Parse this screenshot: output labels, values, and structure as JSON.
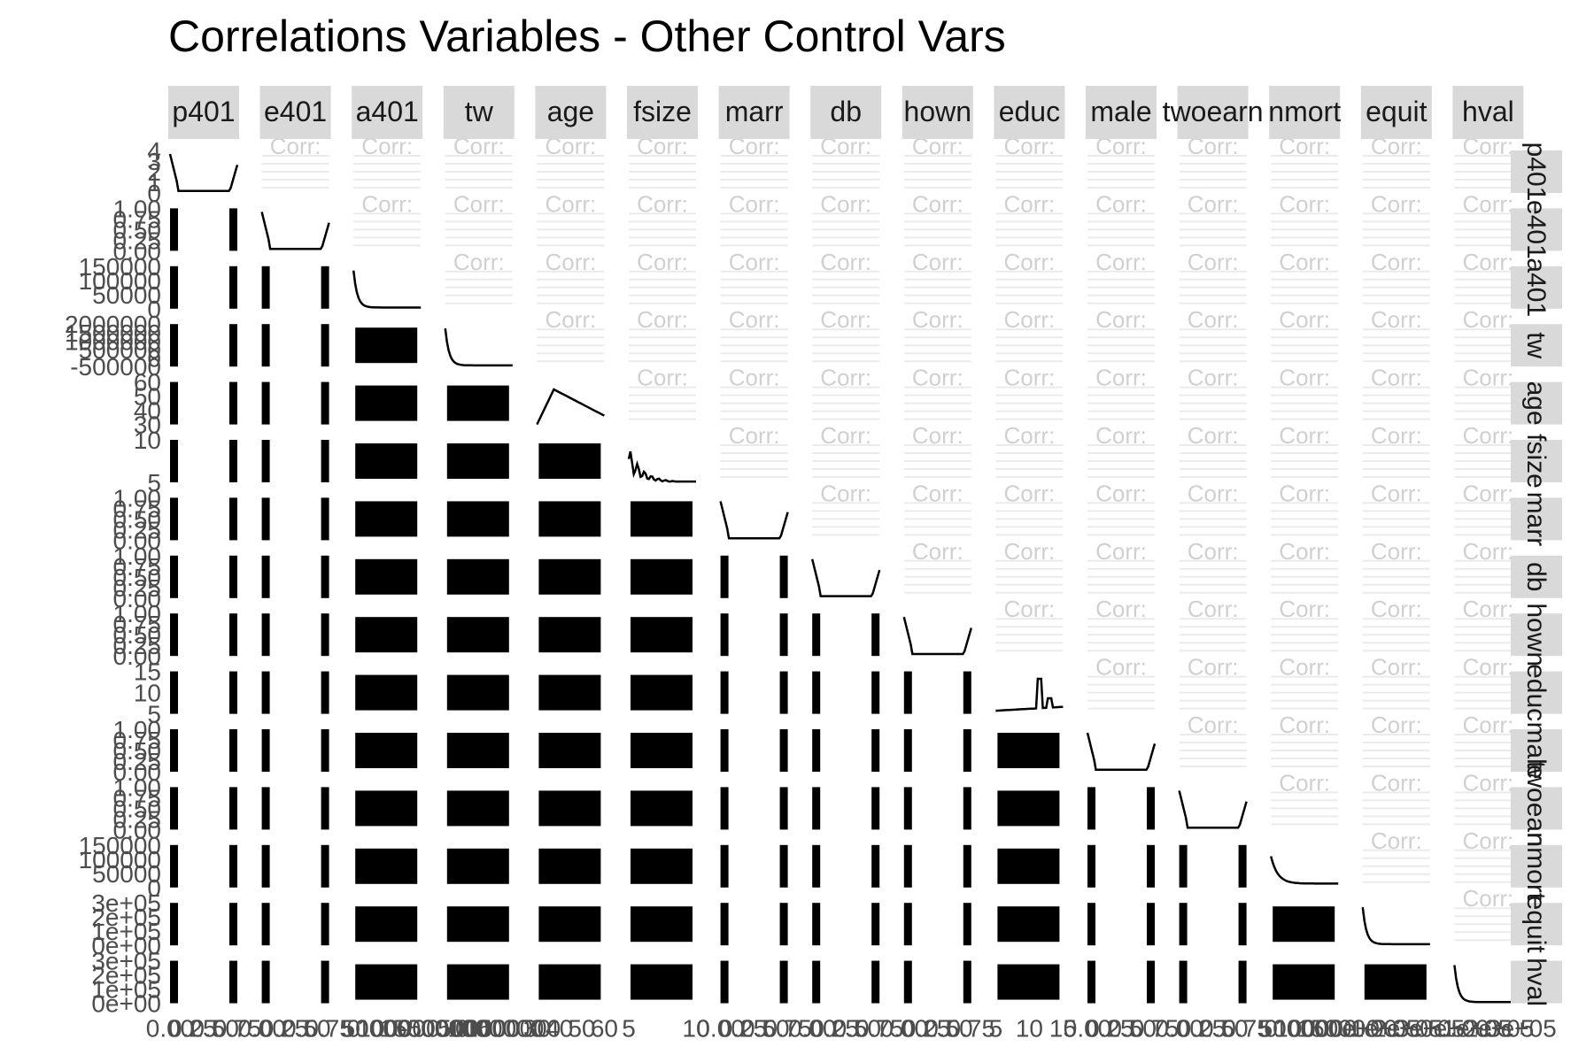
{
  "chart_data": {
    "type": "scatter",
    "title": "Correlations Variables - Other Control Vars",
    "variables": [
      "p401",
      "e401",
      "a401",
      "tw",
      "age",
      "fsize",
      "marr",
      "db",
      "hown",
      "educ",
      "male",
      "twoearn",
      "nmort",
      "equit",
      "hval"
    ],
    "column_strip_labels": [
      "p401",
      "e401",
      "a401",
      "tw",
      "age",
      "fsize",
      "marr",
      "db",
      "hown",
      "educ",
      "male",
      "twoearn",
      "nmort",
      "equit",
      "hval"
    ],
    "row_strip_labels": [
      "p401",
      "e401",
      "a401",
      "tw",
      "age",
      "fsize",
      "marr",
      "db",
      "hown",
      "educ",
      "male",
      "twoearn",
      "nmort",
      "equit",
      "hval"
    ],
    "row_tick_labels": [
      [
        "0",
        "1",
        "2",
        "3",
        "4"
      ],
      [
        "0.00",
        "0.25",
        "0.50",
        "0.75",
        "1.00"
      ],
      [
        "0",
        "50000",
        "100000",
        "150000"
      ],
      [
        "-500000",
        "0",
        "500000",
        "1000000",
        "1500000",
        "2000000"
      ],
      [
        "30",
        "40",
        "50",
        "60"
      ],
      [
        "5",
        "10"
      ],
      [
        "0.00",
        "0.25",
        "0.50",
        "0.75",
        "1.00"
      ],
      [
        "0.00",
        "0.25",
        "0.50",
        "0.75",
        "1.00"
      ],
      [
        "0.00",
        "0.25",
        "0.50",
        "0.75",
        "1.00"
      ],
      [
        "5",
        "10",
        "15"
      ],
      [
        "0.00",
        "0.25",
        "0.50",
        "0.75",
        "1.00"
      ],
      [
        "0.00",
        "0.25",
        "0.50",
        "0.75",
        "1.00"
      ],
      [
        "0",
        "50000",
        "100000",
        "150000"
      ],
      [
        "0e+00",
        "1e+05",
        "2e+05",
        "3e+05"
      ],
      [
        "0e+00",
        "1e+05",
        "2e+05",
        "3e+05"
      ]
    ],
    "column_tick_labels": [
      [
        "0.00",
        "0.25",
        "0.50",
        "0.75"
      ],
      [
        "0.00",
        "0.25",
        "0.50",
        "0.75"
      ],
      [
        "0",
        "50000",
        "100000",
        "150000"
      ],
      [
        "-500000",
        "0",
        "500000",
        "1000000",
        "1500000"
      ],
      [
        "30",
        "40",
        "50",
        "60"
      ],
      [
        "5",
        "10"
      ],
      [
        "0.00",
        "0.25",
        "0.50",
        "0.75"
      ],
      [
        "0.00",
        "0.25",
        "0.50",
        "0.75"
      ],
      [
        "0.00",
        "0.25",
        "0.50",
        "0.75"
      ],
      [
        "5",
        "10",
        "15"
      ],
      [
        "0.00",
        "0.25",
        "0.50",
        "0.75"
      ],
      [
        "0.00",
        "0.25",
        "0.50",
        "0.75"
      ],
      [
        "0",
        "50000",
        "100000",
        "150000"
      ],
      [
        "0e+00",
        "1e+05",
        "2e+05",
        "3e+05"
      ],
      [
        "0e+00",
        "1e+05",
        "2e+05",
        "3e+05"
      ]
    ],
    "upper_panel_text": "Corr:",
    "grid": true,
    "legend": "none"
  },
  "colors": {
    "strip_background": "#d9d9d9",
    "panel_grid": "#ebebeb",
    "upper_text": "#d0d0d0",
    "ink": "#000000",
    "axis_text": "#4d4d4d"
  }
}
